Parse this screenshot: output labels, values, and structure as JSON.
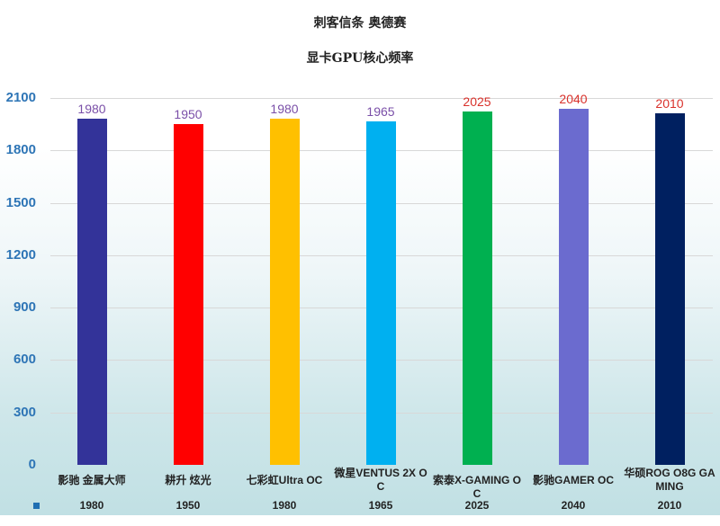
{
  "header": {
    "title": "刺客信条 奥德赛",
    "subtitle": "显卡GPU核心频率"
  },
  "axis": {
    "y_ticks": [
      "2100",
      "1800",
      "1500",
      "1200",
      "900",
      "600",
      "300",
      "0"
    ]
  },
  "bars": [
    {
      "label": "影驰 金属大师",
      "value": "1980",
      "color": "#333399",
      "label_color": "#7a4fa8"
    },
    {
      "label": "耕升 炫光",
      "value": "1950",
      "color": "#ff0000",
      "label_color": "#7a4fa8"
    },
    {
      "label": "七彩虹Ultra OC",
      "value": "1980",
      "color": "#ffc000",
      "label_color": "#7a4fa8"
    },
    {
      "label": "微星VENTUS 2X O C",
      "value": "1965",
      "color": "#00b0f0",
      "label_color": "#7a4fa8"
    },
    {
      "label": "索泰X-GAMING O C",
      "value": "2025",
      "color": "#00b050",
      "label_color": "#d9312b"
    },
    {
      "label": "影驰GAMER OC",
      "value": "2040",
      "color": "#6b6bcf",
      "label_color": "#d9312b"
    },
    {
      "label": "华硕ROG O8G GA MING",
      "value": "2010",
      "color": "#002060",
      "label_color": "#d9312b"
    }
  ],
  "chart_data": {
    "type": "bar",
    "title": "刺客信条 奥德赛",
    "subtitle": "显卡GPU核心频率",
    "categories": [
      "影驰 金属大师",
      "耕升 炫光",
      "七彩虹Ultra OC",
      "微星VENTUS 2X OC",
      "索泰X-GAMING OC",
      "影驰GAMER OC",
      "华硕ROG O8G GAMING"
    ],
    "values": [
      1980,
      1950,
      1980,
      1965,
      2025,
      2040,
      2010
    ],
    "colors": [
      "#333399",
      "#ff0000",
      "#ffc000",
      "#00b0f0",
      "#00b050",
      "#6b6bcf",
      "#002060"
    ],
    "xlabel": "",
    "ylabel": "",
    "ylim": [
      0,
      2100
    ],
    "yticks": [
      0,
      300,
      600,
      900,
      1200,
      1500,
      1800,
      2100
    ],
    "grid": true,
    "data_table": true,
    "legend": "data-table key (blue square)"
  }
}
